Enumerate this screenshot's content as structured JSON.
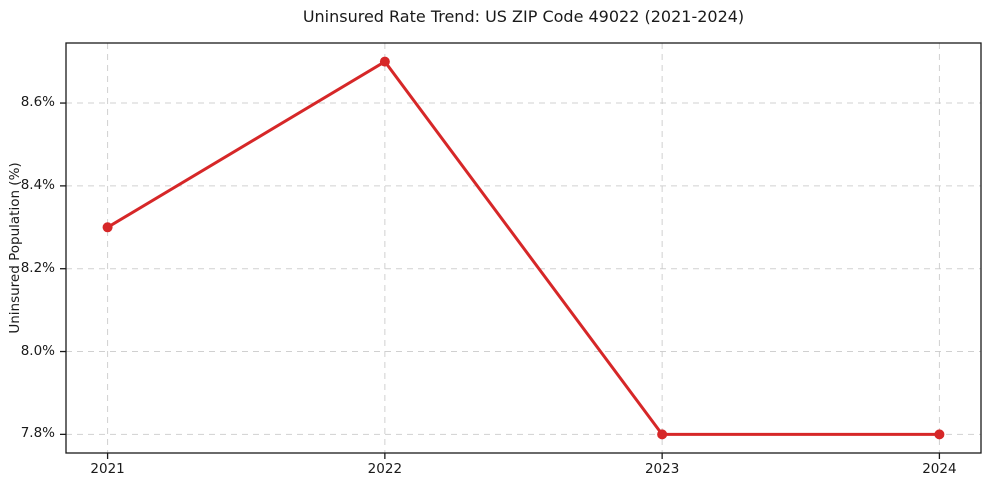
{
  "chart_data": {
    "type": "line",
    "title": "Uninsured Rate Trend: US ZIP Code 49022 (2021-2024)",
    "ylabel": "Uninsured Population (%)",
    "xlabel": "",
    "x": [
      2021,
      2022,
      2023,
      2024
    ],
    "series": [
      {
        "name": "Uninsured rate",
        "values": [
          8.3,
          8.7,
          7.8,
          7.8
        ]
      }
    ],
    "x_tick_labels": [
      "2021",
      "2022",
      "2023",
      "2024"
    ],
    "y_ticks": [
      7.8,
      8.0,
      8.2,
      8.4,
      8.6
    ],
    "y_tick_labels": [
      "7.8%",
      "8.0%",
      "8.2%",
      "8.4%",
      "8.6%"
    ],
    "xlim": [
      2020.85,
      2024.15
    ],
    "ylim": [
      7.755,
      8.745
    ],
    "grid": true,
    "legend": "none",
    "line_color": "#d62728",
    "marker_color": "#d62728",
    "marker": "circle",
    "grid_color": "#cccccc",
    "spine_color": "#1a1a1a",
    "background_color": "#ffffff"
  }
}
